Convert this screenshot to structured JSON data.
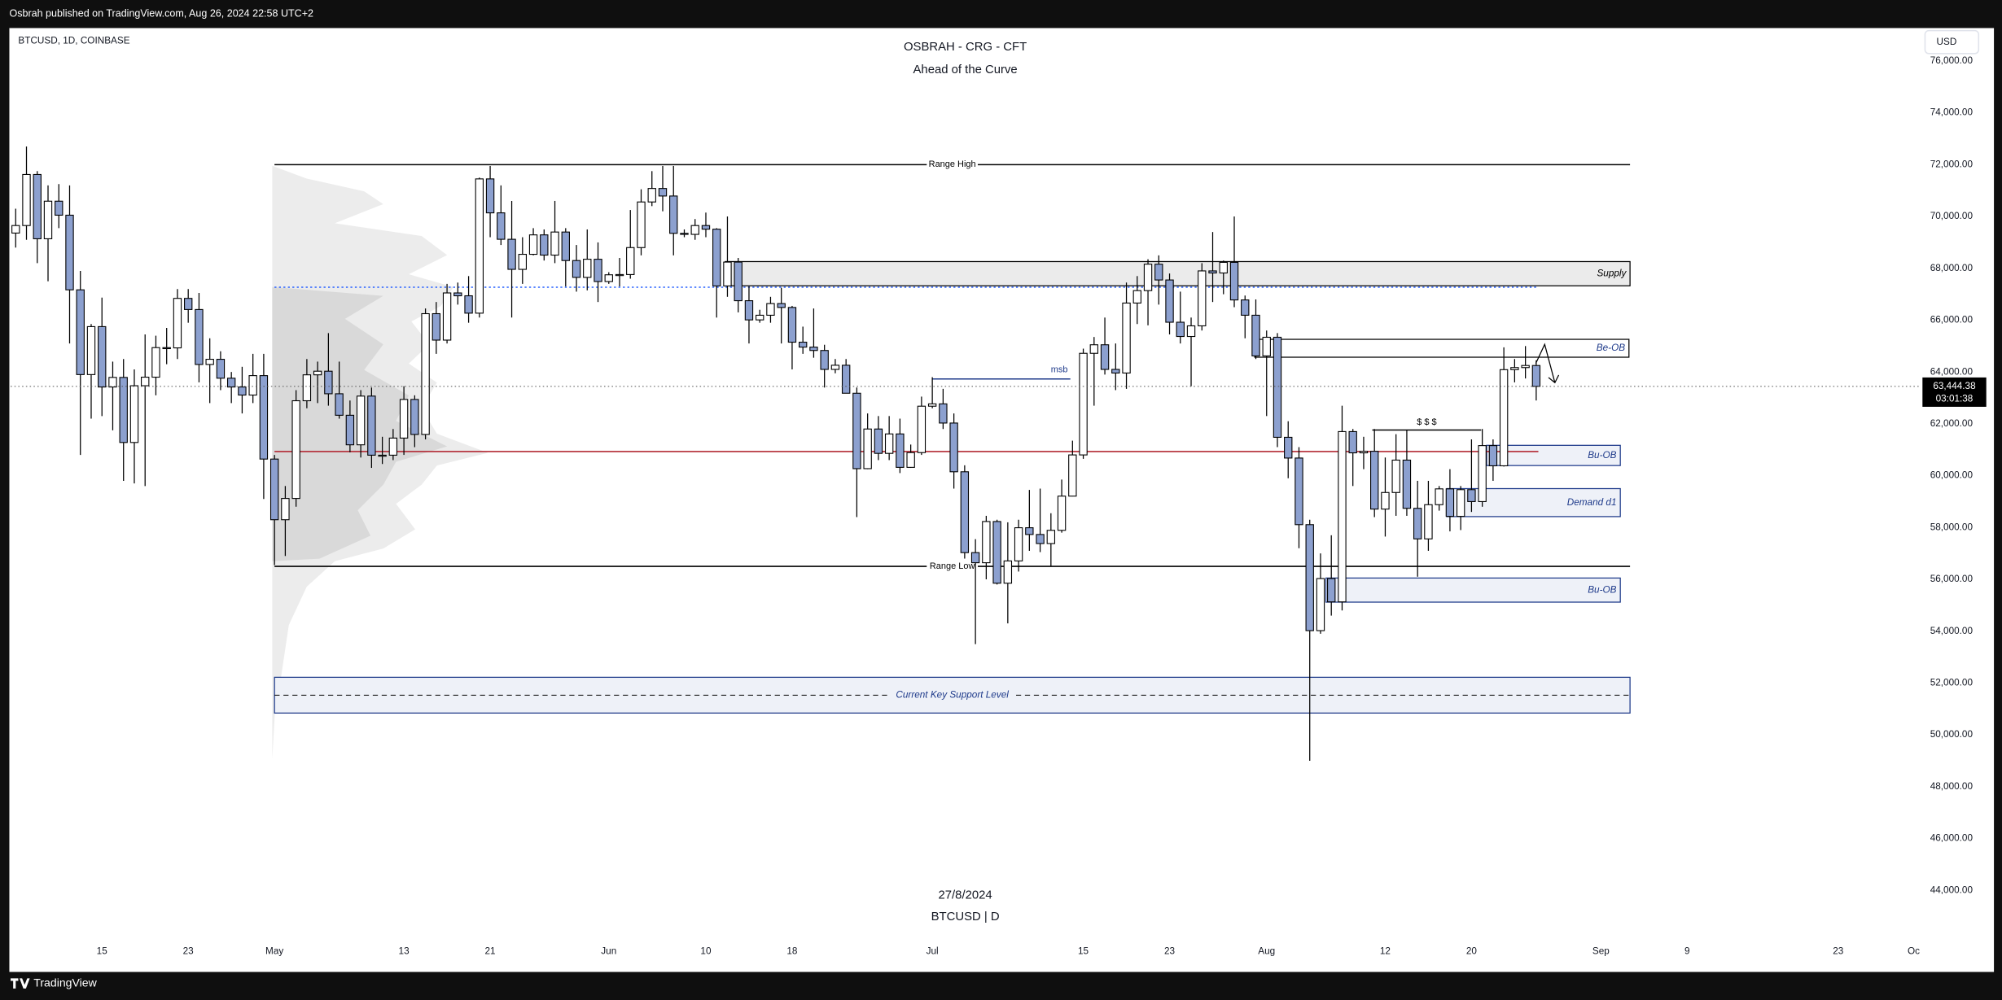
{
  "header": {
    "published": "Osbrah published on TradingView.com, Aug 26, 2024 22:58 UTC+2",
    "brand": "TradingView"
  },
  "chart_data": {
    "type": "candlestick",
    "symbol": "BTCUSD, 1D, COINBASE",
    "title": "OSBRAH - CRG - CFT",
    "subtitle": "Ahead of the Curve",
    "watermark_date": "27/8/2024",
    "watermark_symbol": "BTCUSD | D",
    "currency": "USD",
    "up_color": "#ffffff",
    "down_color": "#8ca0cf",
    "border_color": "#000000",
    "xlim": [
      -0.47,
      176.7
    ],
    "ylim": [
      42180,
      77270
    ],
    "grid": false,
    "xticks": [
      {
        "value": 8,
        "label": "15"
      },
      {
        "value": 16,
        "label": "23"
      },
      {
        "value": 24,
        "label": "May"
      },
      {
        "value": 36,
        "label": "13"
      },
      {
        "value": 44,
        "label": "21"
      },
      {
        "value": 55,
        "label": "Jun"
      },
      {
        "value": 64,
        "label": "10"
      },
      {
        "value": 72,
        "label": "18"
      },
      {
        "value": 85,
        "label": "Jul"
      },
      {
        "value": 99,
        "label": "15"
      },
      {
        "value": 107,
        "label": "23"
      },
      {
        "value": 116,
        "label": "Aug"
      },
      {
        "value": 127,
        "label": "12"
      },
      {
        "value": 135,
        "label": "20"
      },
      {
        "value": 147,
        "label": "Sep"
      },
      {
        "value": 155,
        "label": "9"
      },
      {
        "value": 169,
        "label": "23"
      },
      {
        "value": 176,
        "label": "Oc"
      }
    ],
    "yticks": [
      {
        "value": 44000,
        "label": "44,000.00"
      },
      {
        "value": 46000,
        "label": "46,000.00"
      },
      {
        "value": 48000,
        "label": "48,000.00"
      },
      {
        "value": 50000,
        "label": "50,000.00"
      },
      {
        "value": 52000,
        "label": "52,000.00"
      },
      {
        "value": 54000,
        "label": "54,000.00"
      },
      {
        "value": 56000,
        "label": "56,000.00"
      },
      {
        "value": 58000,
        "label": "58,000.00"
      },
      {
        "value": 60000,
        "label": "60,000.00"
      },
      {
        "value": 62000,
        "label": "62,000.00"
      },
      {
        "value": 64000,
        "label": "64,000.00"
      },
      {
        "value": 66000,
        "label": "66,000.00"
      },
      {
        "value": 68000,
        "label": "68,000.00"
      },
      {
        "value": 70000,
        "label": "70,000.00"
      },
      {
        "value": 72000,
        "label": "72,000.00"
      },
      {
        "value": 74000,
        "label": "74,000.00"
      },
      {
        "value": 76000,
        "label": "76,000.00"
      }
    ],
    "last_price": {
      "value": 63444.38,
      "label": "63,444.38"
    },
    "countdown": "03:01:38",
    "candles": [
      [
        69360,
        70300,
        68800,
        69650
      ],
      [
        69650,
        72700,
        69100,
        71620
      ],
      [
        71620,
        71750,
        68200,
        69140
      ],
      [
        69140,
        71200,
        67500,
        70590
      ],
      [
        70590,
        71250,
        69550,
        70050
      ],
      [
        70050,
        71200,
        65100,
        67170
      ],
      [
        67170,
        67900,
        60800,
        63900
      ],
      [
        63900,
        65850,
        62200,
        65750
      ],
      [
        65750,
        66870,
        62300,
        63420
      ],
      [
        63420,
        64400,
        61750,
        63790
      ],
      [
        63790,
        64500,
        59800,
        61280
      ],
      [
        61280,
        64100,
        59700,
        63470
      ],
      [
        63470,
        65450,
        59600,
        63800
      ],
      [
        63800,
        65400,
        63100,
        64940
      ],
      [
        64940,
        65700,
        64300,
        64930
      ],
      [
        64930,
        67200,
        64500,
        66840
      ],
      [
        66840,
        67200,
        65900,
        66410
      ],
      [
        66410,
        67050,
        63600,
        64290
      ],
      [
        64290,
        65300,
        62800,
        64490
      ],
      [
        64490,
        64800,
        63300,
        63760
      ],
      [
        63760,
        64000,
        62800,
        63420
      ],
      [
        63420,
        64200,
        62400,
        63110
      ],
      [
        63110,
        64700,
        62800,
        63860
      ],
      [
        63860,
        64700,
        59100,
        60640
      ],
      [
        60640,
        60800,
        56550,
        58300
      ],
      [
        58300,
        59600,
        56900,
        59120
      ],
      [
        59120,
        63300,
        58800,
        62890
      ],
      [
        62890,
        64500,
        62600,
        63890
      ],
      [
        63890,
        64400,
        62800,
        64030
      ],
      [
        64030,
        65500,
        62700,
        63160
      ],
      [
        63160,
        64400,
        62200,
        62330
      ],
      [
        62330,
        62900,
        60900,
        61190
      ],
      [
        61190,
        63300,
        60700,
        63070
      ],
      [
        63070,
        63400,
        60300,
        60790
      ],
      [
        60790,
        61500,
        60450,
        60790
      ],
      [
        60790,
        61800,
        60600,
        61450
      ],
      [
        61450,
        63450,
        60800,
        62940
      ],
      [
        62940,
        63100,
        61100,
        61590
      ],
      [
        61590,
        66450,
        61400,
        66250
      ],
      [
        66250,
        66700,
        64700,
        65230
      ],
      [
        65230,
        67400,
        65100,
        67050
      ],
      [
        67050,
        67450,
        66600,
        66940
      ],
      [
        66940,
        67700,
        65900,
        66270
      ],
      [
        66270,
        71500,
        66100,
        71450
      ],
      [
        71450,
        71950,
        69200,
        70140
      ],
      [
        70140,
        71200,
        68900,
        69120
      ],
      [
        69120,
        70600,
        66100,
        67960
      ],
      [
        67960,
        69200,
        67400,
        68540
      ],
      [
        68540,
        69550,
        68500,
        69290
      ],
      [
        69290,
        69500,
        68300,
        68510
      ],
      [
        68510,
        70600,
        68200,
        69400
      ],
      [
        69400,
        69550,
        67300,
        68300
      ],
      [
        68300,
        68900,
        67100,
        67650
      ],
      [
        67650,
        69500,
        67150,
        68350
      ],
      [
        68350,
        69000,
        66700,
        67490
      ],
      [
        67490,
        67850,
        67400,
        67750
      ],
      [
        67750,
        68400,
        67300,
        67760
      ],
      [
        67760,
        70250,
        67600,
        68800
      ],
      [
        68800,
        71050,
        68500,
        70560
      ],
      [
        70560,
        71750,
        70400,
        71080
      ],
      [
        71080,
        71950,
        70200,
        70790
      ],
      [
        70790,
        71950,
        68500,
        69350
      ],
      [
        69350,
        69500,
        69200,
        69310
      ],
      [
        69310,
        69900,
        69100,
        69650
      ],
      [
        69650,
        70150,
        69200,
        69510
      ],
      [
        69510,
        69550,
        66100,
        67320
      ],
      [
        67320,
        70000,
        66900,
        68240
      ],
      [
        68240,
        68400,
        66300,
        66750
      ],
      [
        66750,
        67300,
        65100,
        66010
      ],
      [
        66010,
        66400,
        65900,
        66190
      ],
      [
        66190,
        66900,
        65900,
        66640
      ],
      [
        66640,
        67250,
        65100,
        66490
      ],
      [
        66490,
        66550,
        64100,
        65150
      ],
      [
        65150,
        65750,
        64700,
        64960
      ],
      [
        64960,
        66450,
        64550,
        64830
      ],
      [
        64830,
        65050,
        63400,
        64100
      ],
      [
        64100,
        64500,
        63950,
        64260
      ],
      [
        64260,
        64500,
        63200,
        63180
      ],
      [
        63180,
        63400,
        58400,
        60270
      ],
      [
        60270,
        62400,
        60250,
        61800
      ],
      [
        61800,
        62300,
        60600,
        60860
      ],
      [
        60860,
        62300,
        60600,
        61610
      ],
      [
        61610,
        62200,
        60100,
        60320
      ],
      [
        60320,
        61200,
        60300,
        60890
      ],
      [
        60890,
        63050,
        60800,
        62680
      ],
      [
        62680,
        63800,
        62600,
        62770
      ],
      [
        62770,
        63350,
        61800,
        62030
      ],
      [
        62030,
        62400,
        59500,
        60150
      ],
      [
        60150,
        60400,
        56800,
        57030
      ],
      [
        57030,
        57550,
        53500,
        56640
      ],
      [
        56640,
        58450,
        56000,
        58230
      ],
      [
        58230,
        58300,
        55800,
        55850
      ],
      [
        55850,
        58200,
        54300,
        56710
      ],
      [
        56710,
        58300,
        56300,
        57990
      ],
      [
        57990,
        59450,
        57100,
        57730
      ],
      [
        57730,
        59500,
        57050,
        57380
      ],
      [
        57380,
        58550,
        56500,
        57890
      ],
      [
        57890,
        59850,
        57800,
        59210
      ],
      [
        59210,
        61350,
        59200,
        60800
      ],
      [
        60800,
        64900,
        60650,
        64720
      ],
      [
        64720,
        65350,
        62700,
        65050
      ],
      [
        65050,
        66100,
        63900,
        64100
      ],
      [
        64100,
        65100,
        63300,
        63960
      ],
      [
        63960,
        67450,
        63350,
        66660
      ],
      [
        66660,
        67700,
        65850,
        67140
      ],
      [
        67140,
        68350,
        65800,
        68160
      ],
      [
        68160,
        68500,
        66600,
        67550
      ],
      [
        67550,
        67800,
        65450,
        65920
      ],
      [
        65920,
        67100,
        65100,
        65370
      ],
      [
        65370,
        66100,
        63450,
        65780
      ],
      [
        65780,
        68200,
        65600,
        67900
      ],
      [
        67900,
        69400,
        66700,
        67820
      ],
      [
        67820,
        68300,
        67000,
        68230
      ],
      [
        68230,
        70000,
        66500,
        66780
      ],
      [
        66780,
        66950,
        65300,
        66190
      ],
      [
        66190,
        66800,
        64500,
        64620
      ],
      [
        64620,
        65600,
        62300,
        65340
      ],
      [
        65340,
        65500,
        61100,
        61480
      ],
      [
        61480,
        62100,
        59900,
        60680
      ],
      [
        60680,
        61100,
        57200,
        58110
      ],
      [
        58110,
        58300,
        49000,
        54020
      ],
      [
        54020,
        57000,
        53900,
        56030
      ],
      [
        56030,
        57700,
        54600,
        55130
      ],
      [
        55130,
        62700,
        54800,
        61700
      ],
      [
        61700,
        61800,
        59600,
        60880
      ],
      [
        60880,
        61500,
        60250,
        60940
      ],
      [
        60940,
        61800,
        58400,
        58710
      ],
      [
        58710,
        60700,
        57650,
        59350
      ],
      [
        59350,
        61600,
        58450,
        60600
      ],
      [
        60600,
        61750,
        58450,
        58740
      ],
      [
        58740,
        59800,
        56100,
        57560
      ],
      [
        57560,
        59800,
        57100,
        58880
      ],
      [
        58880,
        59600,
        58650,
        59490
      ],
      [
        59490,
        60250,
        57850,
        58430
      ],
      [
        58430,
        59600,
        57900,
        59460
      ],
      [
        59460,
        61400,
        58600,
        59000
      ],
      [
        59000,
        61800,
        58800,
        61160
      ],
      [
        61160,
        61400,
        59800,
        60380
      ],
      [
        60380,
        64950,
        60350,
        64090
      ],
      [
        64090,
        64500,
        63600,
        64170
      ],
      [
        64170,
        65000,
        63750,
        64250
      ],
      [
        64250,
        64450,
        62900,
        63444.38
      ]
    ],
    "lines": [
      {
        "label": "Range High",
        "price": 72000,
        "from": 24,
        "to": 149.7,
        "color": "#000000",
        "style": "solid",
        "label_position": "center"
      },
      {
        "label": "Range Low",
        "price": 56500,
        "from": 24,
        "to": 149.7,
        "color": "#000000",
        "style": "solid",
        "label_position": "center"
      },
      {
        "price": 67270,
        "from": 24,
        "to": 141.2,
        "color": "#2962ff",
        "style": "dotted"
      },
      {
        "price": 60930,
        "from": 24,
        "to": 141.2,
        "color": "#b22833",
        "style": "solid"
      },
      {
        "label": "msb",
        "price": 63730,
        "from": 85,
        "to": 97.8,
        "color": "#1e3a8a",
        "style": "solid",
        "label_position": "above-end"
      },
      {
        "label": "$ $ $",
        "price": 61760,
        "from": 125.8,
        "to": 135.9,
        "color": "#000000",
        "style": "solid",
        "label_position": "above"
      }
    ],
    "boxes": [
      {
        "label": "Supply",
        "top": 68260,
        "bottom": 67325,
        "from": 65.8,
        "to": 149.7,
        "fill": "#ebebeb",
        "border": "#000000",
        "text_color": "#000000",
        "label_position": "right",
        "dashed_mid": false
      },
      {
        "label": "Be-OB",
        "top": 65260,
        "bottom": 64570,
        "from": 114.9,
        "to": 149.6,
        "fill": "#ffffff",
        "border": "#000000",
        "text_color": "#1e3a8a",
        "label_position": "right",
        "dashed_mid": false
      },
      {
        "label": "Bu-OB",
        "top": 61170,
        "bottom": 60390,
        "from": 136.4,
        "to": 148.8,
        "fill": "#eef1f8",
        "border": "#1e3a8a",
        "text_color": "#1e3a8a",
        "label_position": "right",
        "dashed_mid": false
      },
      {
        "label": "Demand d1",
        "top": 59500,
        "bottom": 58420,
        "from": 132.7,
        "to": 148.8,
        "fill": "#eef1f8",
        "border": "#1e3a8a",
        "text_color": "#1e3a8a",
        "label_position": "right",
        "dashed_mid": false
      },
      {
        "label": "Bu-OB",
        "top": 56050,
        "bottom": 55120,
        "from": 121.5,
        "to": 148.8,
        "fill": "#eef1f8",
        "border": "#1e3a8a",
        "text_color": "#1e3a8a",
        "label_position": "right",
        "dashed_mid": false
      },
      {
        "label": "Current Key Support Level",
        "top": 52220,
        "bottom": 50840,
        "from": 24,
        "to": 149.7,
        "fill": "#eef1f8",
        "border": "#1e3a8a",
        "text_color": "#1e3a8a",
        "label_position": "center",
        "dashed_mid": true
      }
    ]
  }
}
